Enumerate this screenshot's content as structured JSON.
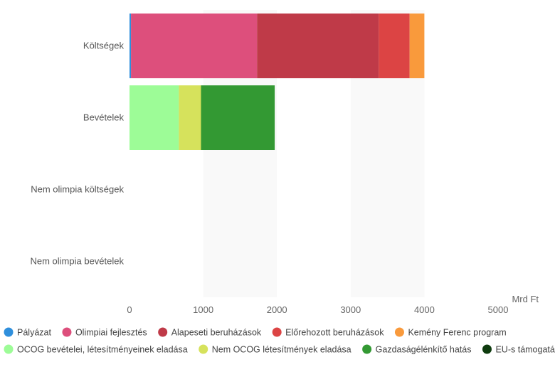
{
  "chart_data": {
    "type": "bar",
    "orientation": "horizontal",
    "stacked": true,
    "unit_label": "Mrd Ft",
    "categories": [
      "Költségek",
      "Bevételek",
      "Nem olimpia költségek",
      "Nem olimpia bevételek"
    ],
    "xlim": [
      0,
      5000
    ],
    "xticks": [
      0,
      1000,
      2000,
      3000,
      4000,
      5000
    ],
    "alternating_bands": true,
    "legend_position": "bottom",
    "series": [
      {
        "name": "Pályázat",
        "color": "#2f8fdc",
        "values": [
          20,
          0,
          0,
          0
        ]
      },
      {
        "name": "Olimpiai fejlesztés",
        "color": "#dd4f7c",
        "values": [
          1710,
          0,
          0,
          0
        ]
      },
      {
        "name": "Alapeseti beruházások",
        "color": "#bf3a48",
        "values": [
          1650,
          0,
          0,
          0
        ]
      },
      {
        "name": "Előrehozott beruházások",
        "color": "#dc4444",
        "values": [
          420,
          0,
          0,
          0
        ]
      },
      {
        "name": "Kemény Ferenc program",
        "color": "#f99a3c",
        "values": [
          200,
          0,
          0,
          0
        ]
      },
      {
        "name": "OCOG bevételei, létesítményeinek eladása",
        "color": "#9dfc97",
        "values": [
          0,
          670,
          0,
          0
        ]
      },
      {
        "name": "Nem OCOG létesítmények eladása",
        "color": "#d6e25c",
        "values": [
          0,
          300,
          0,
          0
        ]
      },
      {
        "name": "Gazdaságélénkítő hatás",
        "color": "#339933",
        "values": [
          0,
          1000,
          0,
          0
        ]
      },
      {
        "name": "EU-s támogatás",
        "color": "#0e3b0e",
        "values": [
          0,
          0,
          0,
          0
        ]
      }
    ]
  }
}
